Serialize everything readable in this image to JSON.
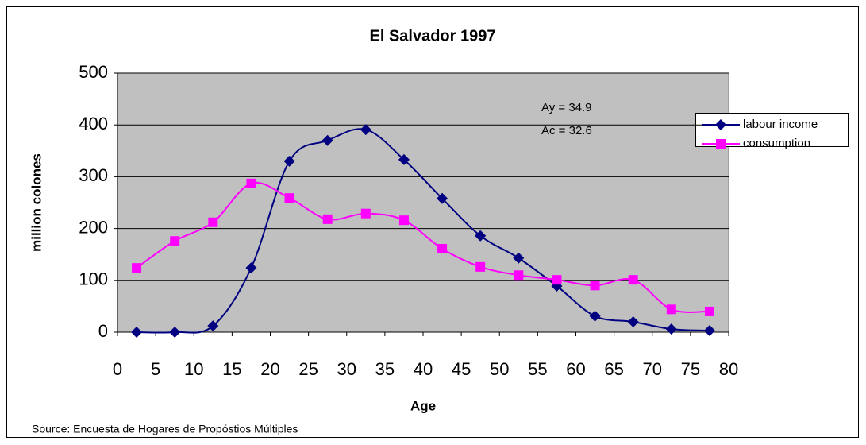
{
  "chart_data": {
    "type": "line",
    "title": "El Salvador 1997",
    "x_label": "Age",
    "y_label": "million colones",
    "annotations": [
      "Ay = 34.9",
      "Ac = 32.6"
    ],
    "source": "Source: Encuesta de Hogares de Propóstios Múltiples",
    "x": [
      2.5,
      7.5,
      12.5,
      17.5,
      22.5,
      27.5,
      32.5,
      37.5,
      42.5,
      47.5,
      52.5,
      57.5,
      62.5,
      67.5,
      72.5,
      77.5
    ],
    "series": [
      {
        "name": "labour income",
        "color": "#000080",
        "marker": "diamond",
        "values": [
          0,
          0,
          12,
          124,
          330,
          370,
          391,
          333,
          258,
          186,
          143,
          89,
          31,
          20,
          6,
          3
        ]
      },
      {
        "name": "consumption",
        "color": "#ff00ff",
        "marker": "square",
        "values": [
          124,
          176,
          212,
          287,
          259,
          218,
          229,
          216,
          161,
          126,
          110,
          101,
          90,
          101,
          44,
          40
        ]
      }
    ],
    "xlim": [
      0,
      80
    ],
    "xticks": [
      0,
      5,
      10,
      15,
      20,
      25,
      30,
      35,
      40,
      45,
      50,
      55,
      60,
      65,
      70,
      75,
      80
    ],
    "ylim": [
      0,
      500
    ],
    "yticks": [
      0,
      100,
      200,
      300,
      400,
      500
    ],
    "grid": true,
    "legend": "right",
    "smooth": true
  }
}
